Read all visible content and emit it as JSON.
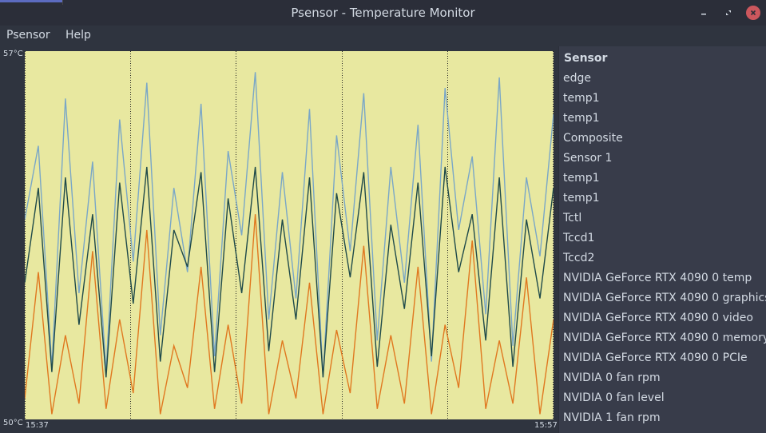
{
  "window": {
    "title": "Psensor - Temperature Monitor"
  },
  "menu": {
    "items": [
      "Psensor",
      "Help"
    ]
  },
  "graph": {
    "y_max_label": "57°C",
    "y_min_label": "50°C",
    "x_start_label": "15:37",
    "x_end_label": "15:57",
    "background": "#e8e8a0",
    "colors": {
      "blue": "#7aa7c7",
      "dark": "#1f4a4a",
      "orange": "#e07820"
    }
  },
  "chart_data": {
    "type": "line",
    "ylim": [
      50,
      57
    ],
    "series": [
      {
        "values": [
          53.8,
          55.2,
          51.0,
          56.1,
          52.4,
          54.9,
          50.9,
          55.7,
          53.0,
          56.4,
          51.6,
          54.4,
          52.8,
          56.0,
          51.2,
          55.1,
          53.5,
          56.6,
          51.9,
          54.7,
          52.3,
          55.9,
          50.8,
          55.4,
          53.2,
          56.2,
          51.5,
          54.8,
          52.6,
          55.6,
          51.1,
          56.3,
          53.6,
          55.0,
          52.0,
          56.5,
          51.4,
          54.6,
          53.1,
          55.8
        ]
      },
      {
        "values": [
          52.6,
          54.4,
          50.9,
          54.6,
          51.8,
          53.9,
          50.8,
          54.5,
          52.2,
          54.8,
          51.1,
          53.6,
          52.9,
          54.7,
          50.9,
          54.2,
          52.4,
          54.8,
          51.3,
          53.8,
          51.9,
          54.6,
          50.8,
          54.3,
          52.7,
          54.7,
          51.0,
          53.7,
          52.1,
          54.5,
          51.2,
          54.8,
          52.8,
          53.9,
          51.5,
          54.6,
          51.0,
          53.8,
          52.3,
          54.4
        ]
      },
      {
        "values": [
          50.4,
          52.8,
          50.1,
          51.6,
          50.3,
          53.2,
          50.2,
          51.9,
          50.5,
          53.6,
          50.1,
          51.4,
          50.6,
          52.9,
          50.2,
          51.8,
          50.3,
          53.9,
          50.1,
          51.5,
          50.4,
          52.6,
          50.1,
          51.7,
          50.5,
          53.3,
          50.2,
          51.6,
          50.3,
          52.9,
          50.1,
          51.8,
          50.6,
          53.4,
          50.2,
          51.5,
          50.3,
          52.7,
          50.1,
          51.9
        ]
      }
    ]
  },
  "sensors": {
    "header": "Sensor",
    "items": [
      "edge",
      "temp1",
      "temp1",
      "Composite",
      "Sensor 1",
      "temp1",
      "temp1",
      "Tctl",
      "Tccd1",
      "Tccd2",
      "NVIDIA GeForce RTX 4090 0 temp",
      "NVIDIA GeForce RTX 4090 0 graphics",
      "NVIDIA GeForce RTX 4090 0 video",
      "NVIDIA GeForce RTX 4090 0 memory",
      "NVIDIA GeForce RTX 4090 0 PCIe",
      "NVIDIA 0 fan rpm",
      "NVIDIA 0 fan level",
      "NVIDIA 1 fan rpm"
    ]
  }
}
